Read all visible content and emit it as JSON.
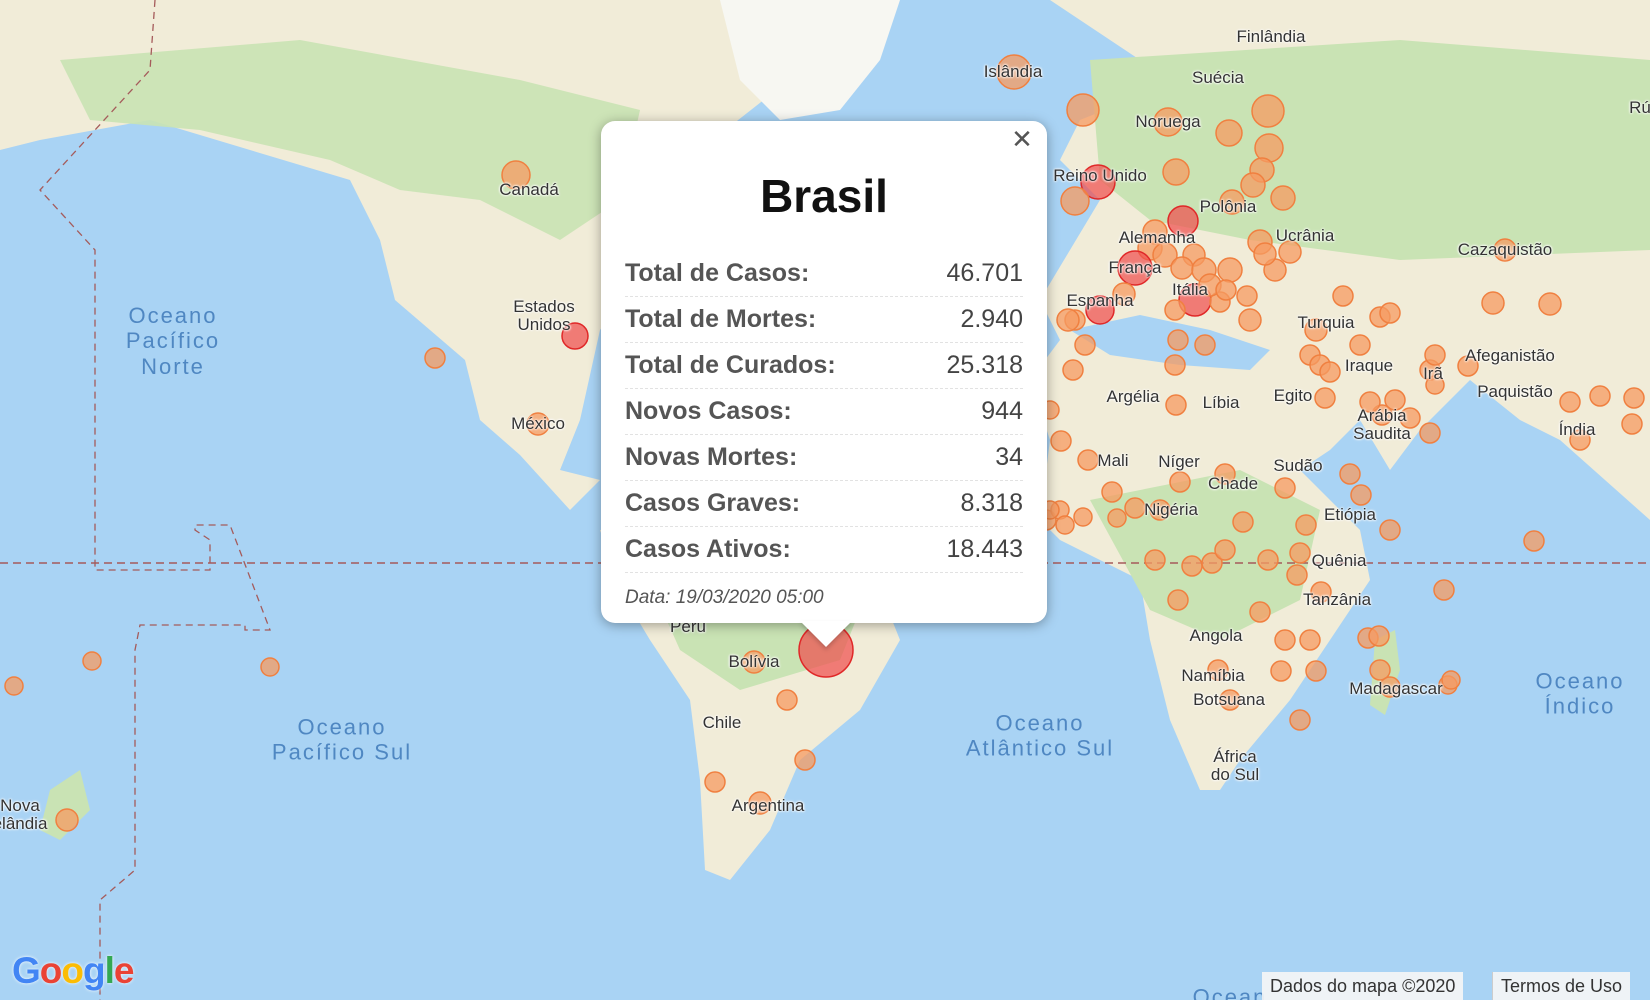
{
  "popup": {
    "title": "Brasil",
    "rows": [
      {
        "label": "Total de Casos:",
        "value": "46.701"
      },
      {
        "label": "Total de Mortes:",
        "value": "2.940"
      },
      {
        "label": "Total de Curados:",
        "value": "25.318"
      },
      {
        "label": "Novos Casos:",
        "value": "944"
      },
      {
        "label": "Novas Mortes:",
        "value": "34"
      },
      {
        "label": "Casos Graves:",
        "value": "8.318"
      },
      {
        "label": "Casos Ativos:",
        "value": "18.443"
      }
    ],
    "date": "Data: 19/03/2020 05:00",
    "close_icon": "close-icon"
  },
  "map": {
    "countries": [
      "Finlândia",
      "Islândia",
      "Suécia",
      "Noruega",
      "Reino Unido",
      "Canadá",
      "Polônia",
      "Alemanha",
      "Ucrânia",
      "Cazaquistão",
      "França",
      "Itália",
      "Espanha",
      "Turquia",
      "Estados\nUnidos",
      "Afeganistão",
      "Iraque",
      "Irã",
      "Argélia",
      "Líbia",
      "Egito",
      "Paquistão",
      "Arábia\nSaudita",
      "México",
      "Índia",
      "Mali",
      "Níger",
      "Sudão",
      "Chade",
      "Nigéria",
      "Etiópia",
      "Quênia",
      "Tanzânia",
      "Peru",
      "Angola",
      "Bolívia",
      "Namíbia",
      "Madagascar",
      "Botsuana",
      "Chile",
      "África\ndo Sul",
      "Argentina",
      "Nova\nelândia",
      "Rú"
    ],
    "oceans": [
      "Oceano\nPacífico\nNorte",
      "Oceano\nPacífico Sul",
      "Oceano\nAtlântico Sul",
      "Oceano\nÍndico",
      "Ocean"
    ]
  },
  "colors": {
    "water": "#a9d3f4",
    "land": "#f1ecd8",
    "forest": "#c9e3b4",
    "marker_orange": "#f59b62",
    "marker_red": "#ef4c4c"
  },
  "footer": {
    "logo": "Google",
    "map_data": "Dados do mapa ©2020",
    "terms": "Termos de Uso"
  }
}
